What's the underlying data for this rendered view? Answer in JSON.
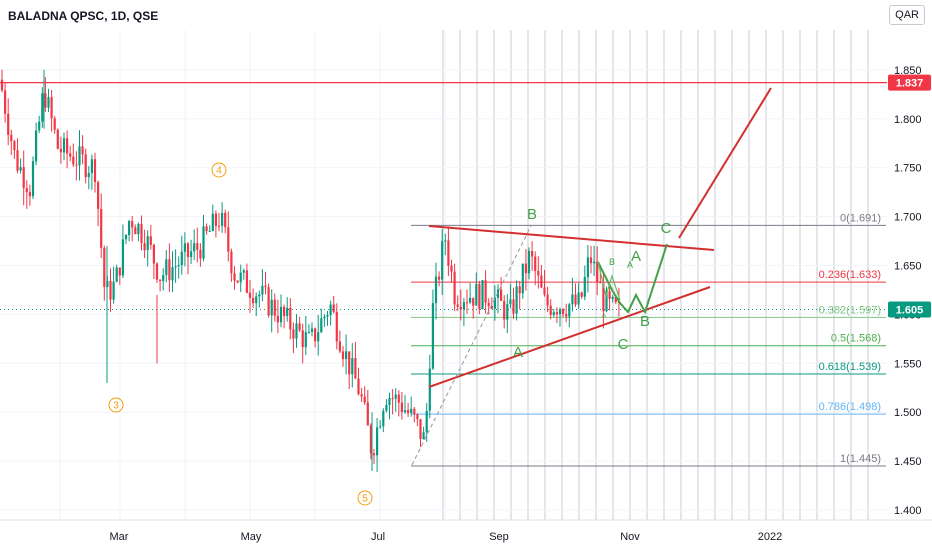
{
  "header": {
    "title": "BALADNA QPSC, 1D, QSE",
    "currency": "QAR"
  },
  "chart_data": {
    "type": "candlestick",
    "price_axis": {
      "ticks": [
        "1.400",
        "1.450",
        "1.500",
        "1.550",
        "1.600",
        "1.650",
        "1.700",
        "1.750",
        "1.800",
        "1.850"
      ],
      "ylim": [
        1.4,
        1.87
      ]
    },
    "time_axis": {
      "ticks": [
        "Mar",
        "May",
        "Jul",
        "Sep",
        "Nov",
        "2022"
      ]
    },
    "price_labels": [
      {
        "value": "1.837",
        "color": "#f23645"
      },
      {
        "value": "1.605",
        "color": "#089981"
      }
    ],
    "fib_levels": [
      {
        "label": "0(1.691)",
        "value": 1.691,
        "color": "#787b86"
      },
      {
        "label": "0.236(1.633)",
        "value": 1.633,
        "color": "#f23645"
      },
      {
        "label": "0.382(1.597)",
        "value": 1.597,
        "color": "#81c784"
      },
      {
        "label": "0.5(1.568)",
        "value": 1.568,
        "color": "#4caf50"
      },
      {
        "label": "0.618(1.539)",
        "value": 1.539,
        "color": "#089981"
      },
      {
        "label": "0.786(1.498)",
        "value": 1.498,
        "color": "#64b5f6"
      },
      {
        "label": "1(1.445)",
        "value": 1.445,
        "color": "#787b86"
      }
    ],
    "wave_labels": [
      "4",
      "3",
      "5"
    ],
    "pattern_labels": [
      "B",
      "C",
      "A",
      "B",
      "C",
      "A",
      "B",
      "A",
      "^"
    ],
    "horizontal_line": {
      "value": 1.837,
      "color": "#f23645"
    },
    "colors": {
      "up": "#089981",
      "down": "#f23645",
      "fib_green": "#43a047",
      "wave_orange": "#f59d0b",
      "trend_red": "#d32f2f"
    }
  }
}
